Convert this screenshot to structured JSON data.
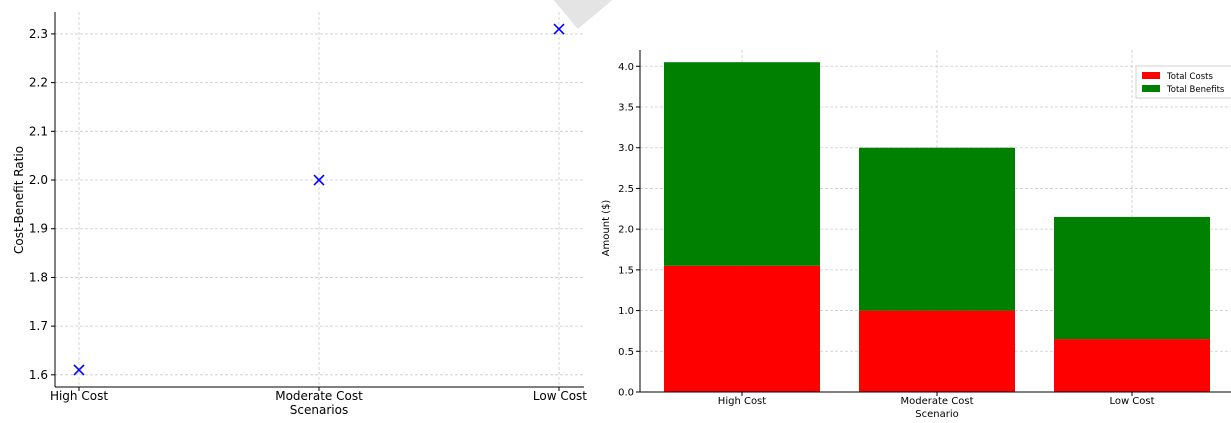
{
  "chart_data": [
    {
      "type": "scatter",
      "title": "",
      "xlabel": "Scenarios",
      "ylabel": "Cost-Benefit Ratio",
      "categories": [
        "High Cost",
        "Moderate Cost",
        "Low Cost"
      ],
      "values": [
        1.61,
        2.0,
        2.31
      ],
      "ylim": [
        1.575,
        2.345
      ],
      "yticks": [
        "1.6",
        "1.7",
        "1.8",
        "1.9",
        "2.0",
        "2.1",
        "2.2",
        "2.3"
      ],
      "marker": "x",
      "marker_color": "#0000ff",
      "grid": true
    },
    {
      "type": "bar",
      "stacked": true,
      "title": "",
      "xlabel": "Scenario",
      "ylabel": "Amount ($)",
      "categories": [
        "High Cost",
        "Moderate Cost",
        "Low Cost"
      ],
      "series": [
        {
          "name": "Total Costs",
          "values": [
            1.55,
            1.0,
            0.65
          ],
          "color": "#ff0000"
        },
        {
          "name": "Total Benefits",
          "values": [
            2.5,
            2.0,
            1.5
          ],
          "color": "#008000"
        }
      ],
      "ylim": [
        0,
        4.2
      ],
      "yticks": [
        "0.0",
        "0.5",
        "1.0",
        "1.5",
        "2.0",
        "2.5",
        "3.0",
        "3.5",
        "4.0"
      ],
      "legend_position": "top-right",
      "grid": true
    }
  ]
}
